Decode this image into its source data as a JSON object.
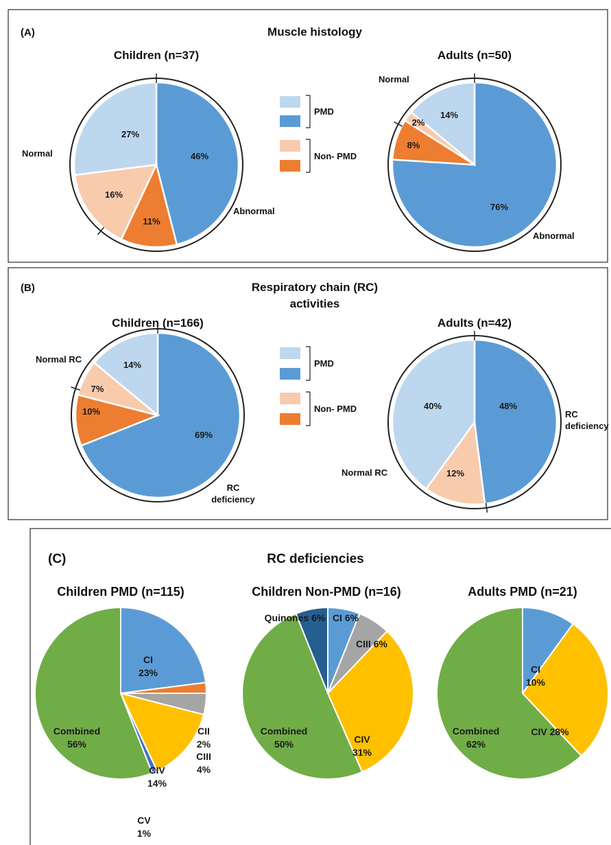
{
  "colors": {
    "pmd_normal": "#bdd7ee",
    "pmd_abnormal": "#5b9bd5",
    "nonpmd_normal": "#f8cbad",
    "nonpmd_abnormal": "#ed7d31",
    "ci": "#5b9bd5",
    "cii": "#ed7d31",
    "ciii": "#a5a5a5",
    "civ": "#ffc000",
    "cv": "#4472c4",
    "combined": "#70ad47",
    "quinones": "#255e91"
  },
  "panel_a": {
    "letter": "(A)",
    "title": "Muscle histology",
    "legend": {
      "pmd": "PMD",
      "nonpmd": "Non- PMD"
    }
  },
  "panel_b": {
    "letter": "(B)",
    "title_line1": "Respiratory chain (RC)",
    "title_line2": "activities",
    "legend": {
      "pmd": "PMD",
      "nonpmd": "Non- PMD"
    }
  },
  "panel_c": {
    "letter": "(C)",
    "title": "RC deficiencies"
  },
  "chart_data": [
    {
      "id": "a_children",
      "type": "pie",
      "title": "Children (n=37)",
      "outer_labels": {
        "normal": "Normal",
        "abnormal": "Abnormal"
      },
      "slices": [
        {
          "name": "PMD abnormal",
          "value": 46,
          "label": "46%",
          "color": "#5b9bd5"
        },
        {
          "name": "Non-PMD abnormal",
          "value": 11,
          "label": "11%",
          "color": "#ed7d31"
        },
        {
          "name": "Non-PMD normal",
          "value": 16,
          "label": "16%",
          "color": "#f8cbad"
        },
        {
          "name": "PMD normal",
          "value": 27,
          "label": "27%",
          "color": "#bdd7ee"
        }
      ]
    },
    {
      "id": "a_adults",
      "type": "pie",
      "title": "Adults (n=50)",
      "outer_labels": {
        "normal": "Normal",
        "abnormal": "Abnormal"
      },
      "slices": [
        {
          "name": "PMD abnormal",
          "value": 76,
          "label": "76%",
          "color": "#5b9bd5"
        },
        {
          "name": "Non-PMD abnormal",
          "value": 8,
          "label": "8%",
          "color": "#ed7d31"
        },
        {
          "name": "Non-PMD normal",
          "value": 2,
          "label": "2%",
          "color": "#f8cbad"
        },
        {
          "name": "PMD normal",
          "value": 14,
          "label": "14%",
          "color": "#bdd7ee"
        }
      ]
    },
    {
      "id": "b_children",
      "type": "pie",
      "title": "Children (n=166)",
      "outer_labels": {
        "normal": "Normal RC",
        "deficiency": "RC\ndeficiency"
      },
      "slices": [
        {
          "name": "PMD RC deficiency",
          "value": 69,
          "label": "69%",
          "color": "#5b9bd5"
        },
        {
          "name": "Non-PMD RC deficiency",
          "value": 10,
          "label": "10%",
          "color": "#ed7d31"
        },
        {
          "name": "Non-PMD normal RC",
          "value": 7,
          "label": "7%",
          "color": "#f8cbad"
        },
        {
          "name": "PMD normal RC",
          "value": 14,
          "label": "14%",
          "color": "#bdd7ee"
        }
      ]
    },
    {
      "id": "b_adults",
      "type": "pie",
      "title": "Adults (n=42)",
      "outer_labels": {
        "normal": "Normal RC",
        "deficiency": "RC\ndeficiency"
      },
      "slices": [
        {
          "name": "PMD RC deficiency",
          "value": 48,
          "label": "48%",
          "color": "#5b9bd5"
        },
        {
          "name": "Non-PMD normal RC",
          "value": 12,
          "label": "12%",
          "color": "#f8cbad"
        },
        {
          "name": "PMD normal RC",
          "value": 40,
          "label": "40%",
          "color": "#bdd7ee"
        }
      ]
    },
    {
      "id": "c_children_pmd",
      "type": "pie",
      "title": "Children PMD (n=115)",
      "slices": [
        {
          "name": "CI",
          "value": 23,
          "label": "CI\n23%",
          "color": "#5b9bd5"
        },
        {
          "name": "CII",
          "value": 2,
          "label": "CII\n2%",
          "color": "#ed7d31"
        },
        {
          "name": "CIII",
          "value": 4,
          "label": "CIII\n4%",
          "color": "#a5a5a5"
        },
        {
          "name": "CIV",
          "value": 14,
          "label": "CIV\n14%",
          "color": "#ffc000"
        },
        {
          "name": "CV",
          "value": 1,
          "label": "CV\n1%",
          "color": "#4472c4"
        },
        {
          "name": "Combined",
          "value": 56,
          "label": "Combined\n56%",
          "color": "#70ad47"
        }
      ]
    },
    {
      "id": "c_children_nonpmd",
      "type": "pie",
      "title": "Children Non-PMD (n=16)",
      "slices": [
        {
          "name": "CI",
          "value": 6,
          "label": "CI 6%",
          "color": "#5b9bd5"
        },
        {
          "name": "CIII",
          "value": 6,
          "label": "CIII 6%",
          "color": "#a5a5a5"
        },
        {
          "name": "CIV",
          "value": 31,
          "label": "CIV\n31%",
          "color": "#ffc000"
        },
        {
          "name": "Combined",
          "value": 50,
          "label": "Combined\n50%",
          "color": "#70ad47"
        },
        {
          "name": "Quinones",
          "value": 6,
          "label": "Quinones 6%",
          "color": "#255e91"
        }
      ]
    },
    {
      "id": "c_adults_pmd",
      "type": "pie",
      "title": "Adults PMD (n=21)",
      "slices": [
        {
          "name": "CI",
          "value": 10,
          "label": "CI\n10%",
          "color": "#5b9bd5"
        },
        {
          "name": "CIV",
          "value": 28,
          "label": "CIV 28%",
          "color": "#ffc000"
        },
        {
          "name": "Combined",
          "value": 62,
          "label": "Combined\n62%",
          "color": "#70ad47"
        }
      ]
    }
  ]
}
